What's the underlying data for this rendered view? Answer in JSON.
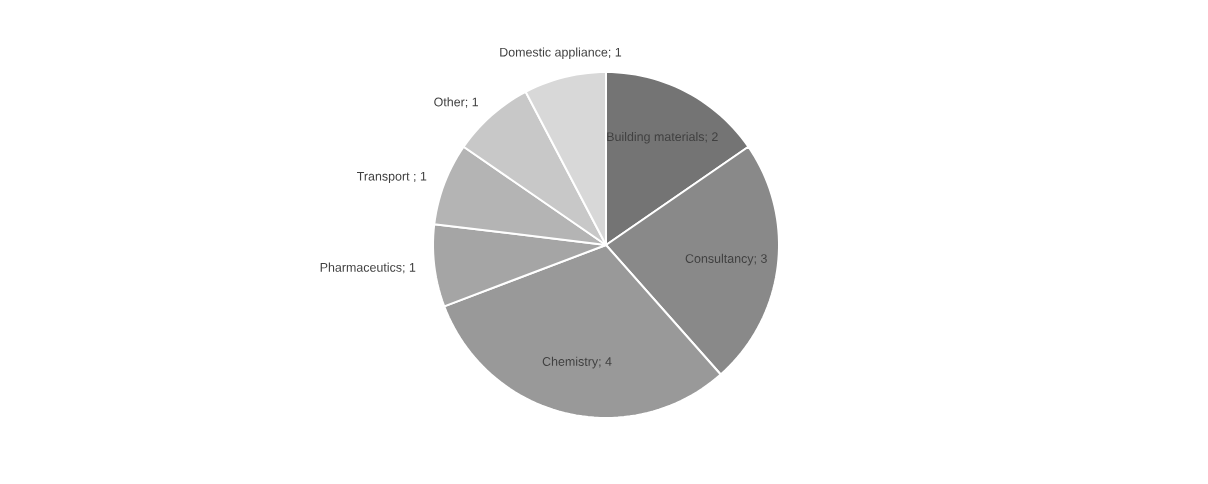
{
  "chart_data": {
    "type": "pie",
    "categories": [
      "Building materials; 2",
      "Consultancy; 3",
      "Chemistry; 4",
      "Pharmaceutics; 1",
      "Transport ; 1",
      "Other; 1",
      "Domestic appliance; 1"
    ],
    "values": [
      2,
      3,
      4,
      1,
      1,
      1,
      1
    ],
    "colors": [
      "#747474",
      "#898989",
      "#999999",
      "#a5a5a5",
      "#b4b4b4",
      "#c8c8c8",
      "#d8d8d8"
    ]
  }
}
